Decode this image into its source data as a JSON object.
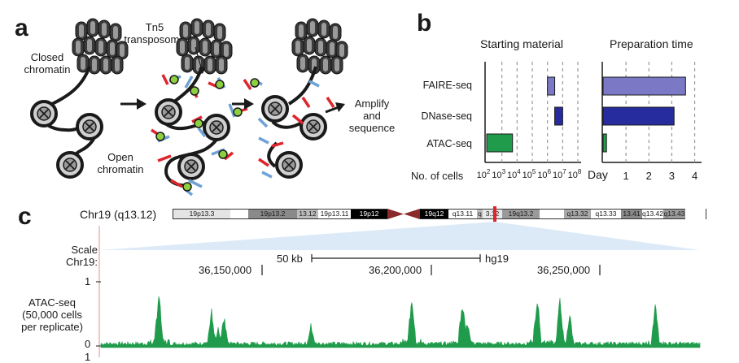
{
  "panel_a": {
    "letter": "a",
    "closed_chromatin_label": [
      "Closed",
      "chromatin"
    ],
    "tn5_label": [
      "Tn5",
      "transposome"
    ],
    "open_chromatin_label": [
      "Open",
      "chromatin"
    ],
    "amplify_label": [
      "Amplify",
      "and",
      "sequence"
    ],
    "colors": {
      "insert_red": "#e0242b",
      "insert_blue": "#6fa3d6",
      "tn5_green": "#8ccf3f",
      "nucleosome": "#2a2a2a"
    }
  },
  "panel_b": {
    "letter": "b",
    "rows": [
      "FAIRE-seq",
      "DNase-seq",
      "ATAC-seq"
    ],
    "starting_material": {
      "title": "Starting material",
      "xlabel": "No. of cells",
      "tick_exponents": [
        "2",
        "3",
        "4",
        "5",
        "6",
        "7",
        "8"
      ],
      "tick_base": "10"
    },
    "preparation_time": {
      "title": "Preparation time",
      "xlabel": "Day",
      "ticks": [
        "1",
        "2",
        "3",
        "4"
      ]
    }
  },
  "chart_data": [
    {
      "type": "bar",
      "orientation": "horizontal-range",
      "title": "Starting material",
      "xlabel": "No. of cells",
      "xscale": "log10",
      "xlim": [
        100,
        100000000
      ],
      "categories": [
        "FAIRE-seq",
        "DNase-seq",
        "ATAC-seq"
      ],
      "ranges": [
        [
          1000000,
          3000000
        ],
        [
          3000000,
          10000000
        ],
        [
          100,
          5000
        ]
      ],
      "colors": [
        "#7b78c6",
        "#262c9e",
        "#1f9b4b"
      ],
      "grid": "dashed-vertical"
    },
    {
      "type": "bar",
      "orientation": "horizontal",
      "title": "Preparation time",
      "xlabel": "Day",
      "xlim": [
        0,
        4.3
      ],
      "categories": [
        "FAIRE-seq",
        "DNase-seq",
        "ATAC-seq"
      ],
      "values": [
        3.6,
        3.1,
        0.15
      ],
      "colors": [
        "#7b78c6",
        "#262c9e",
        "#1f9b4b"
      ],
      "grid": "dashed-vertical"
    }
  ],
  "panel_c": {
    "letter": "c",
    "chrom_label": "Chr19 (q13.12)",
    "bands": [
      {
        "label": "19p13.3",
        "w": 70,
        "color": "#e4e4e4"
      },
      {
        "label": "",
        "w": 22,
        "color": "#ffffff"
      },
      {
        "label": "19p13.2",
        "w": 60,
        "color": "#8a8a8a"
      },
      {
        "label": "13.12",
        "w": 26,
        "color": "#bcbcbc"
      },
      {
        "label": "19p13.11",
        "w": 40,
        "color": "#ffffff"
      },
      {
        "label": "19p12",
        "w": 45,
        "color": "#000000",
        "text": "#ffffff"
      },
      {
        "label": "CEN",
        "w": 40,
        "color": "#8b2a2a"
      },
      {
        "label": "19q12",
        "w": 35,
        "color": "#000000",
        "text": "#ffffff"
      },
      {
        "label": "q13.11",
        "w": 35,
        "color": "#ffffff"
      },
      {
        "label": "q",
        "w": 7,
        "color": "#bcbcbc"
      },
      {
        "label": "3.12",
        "w": 24,
        "color": "#e8e8e8"
      },
      {
        "label": "19q13.2",
        "w": 46,
        "color": "#9a9a9a"
      },
      {
        "label": "",
        "w": 30,
        "color": "#ffffff"
      },
      {
        "label": "q13.32",
        "w": 33,
        "color": "#a9a9a9"
      },
      {
        "label": "q13.33",
        "w": 37,
        "color": "#ffffff"
      },
      {
        "label": "13.41",
        "w": 26,
        "color": "#8a8a8a"
      },
      {
        "label": "q13.42",
        "w": 26,
        "color": "#ffffff"
      },
      {
        "label": "q13.43",
        "w": 27,
        "color": "#9a9a9a"
      }
    ],
    "scale_label": [
      "Scale",
      "Chr19:"
    ],
    "scale_bar_label": "50 kb",
    "assembly": "hg19",
    "coordinates": [
      "36,150,000",
      "36,200,000",
      "36,250,000"
    ],
    "track_label": [
      "ATAC-seq",
      "(50,000 cells",
      "per replicate)"
    ],
    "track_ticks": [
      "1",
      "0",
      "1"
    ],
    "track_color": "#1f9b4b",
    "highlight_color": "#e0242b"
  }
}
